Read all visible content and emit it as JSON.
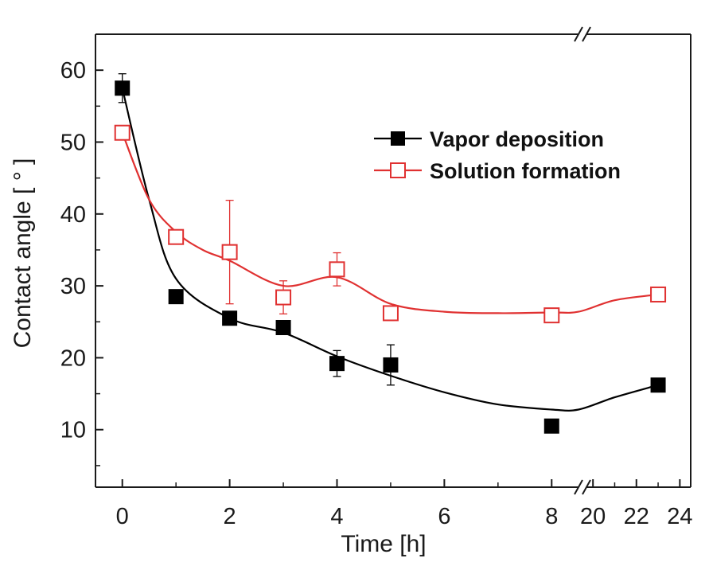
{
  "chart_data": {
    "type": "line",
    "title": "",
    "xlabel": "Time [h]",
    "ylabel": "Contact angle [ ° ]",
    "xlim": [
      -0.5,
      24.5
    ],
    "ylim": [
      2,
      65
    ],
    "axis_break": {
      "from": 8.5,
      "to": 19.7
    },
    "x_ticks": [
      0,
      2,
      4,
      6,
      8,
      20,
      22,
      24
    ],
    "x_tick_labels": [
      "0",
      "2",
      "4",
      "6",
      "8",
      "20",
      "22",
      "24"
    ],
    "y_ticks": [
      10,
      20,
      30,
      40,
      50,
      60
    ],
    "y_tick_labels": [
      "10",
      "20",
      "30",
      "40",
      "50",
      "60"
    ],
    "legend_position": "top-right",
    "series": [
      {
        "name": "Vapor deposition",
        "color": "#000000",
        "marker": "filled-square",
        "x": [
          0,
          1,
          2,
          3,
          4,
          5,
          8,
          23
        ],
        "y": [
          57.5,
          28.5,
          25.5,
          24.2,
          19.2,
          19.0,
          10.5,
          16.2
        ],
        "error": [
          2.0,
          0,
          0,
          0,
          1.8,
          2.8,
          0,
          0
        ],
        "fit_x": [
          0,
          0.5,
          1,
          2,
          3,
          4,
          5,
          6,
          7,
          8,
          8.5,
          21,
          23
        ],
        "fit_y": [
          57.5,
          42,
          31,
          25.5,
          23.5,
          20.2,
          17.5,
          15.2,
          13.5,
          12.8,
          12.8,
          14.5,
          16.2
        ]
      },
      {
        "name": "Solution formation",
        "color": "#e03131",
        "marker": "open-square",
        "x": [
          0,
          1,
          2,
          3,
          4,
          5,
          8,
          23
        ],
        "y": [
          51.3,
          36.8,
          34.7,
          28.4,
          32.3,
          26.2,
          25.9,
          28.8
        ],
        "error": [
          0,
          0,
          7.2,
          2.3,
          2.3,
          1.0,
          0,
          0
        ],
        "fit_x": [
          0,
          0.5,
          1,
          1.5,
          2,
          3,
          4,
          5,
          6,
          7,
          8,
          8.5,
          21,
          23
        ],
        "fit_y": [
          51.3,
          42,
          37.5,
          35.0,
          33.5,
          30,
          31.2,
          27.5,
          26.4,
          26.2,
          26.3,
          26.4,
          28.0,
          28.8
        ]
      }
    ]
  }
}
